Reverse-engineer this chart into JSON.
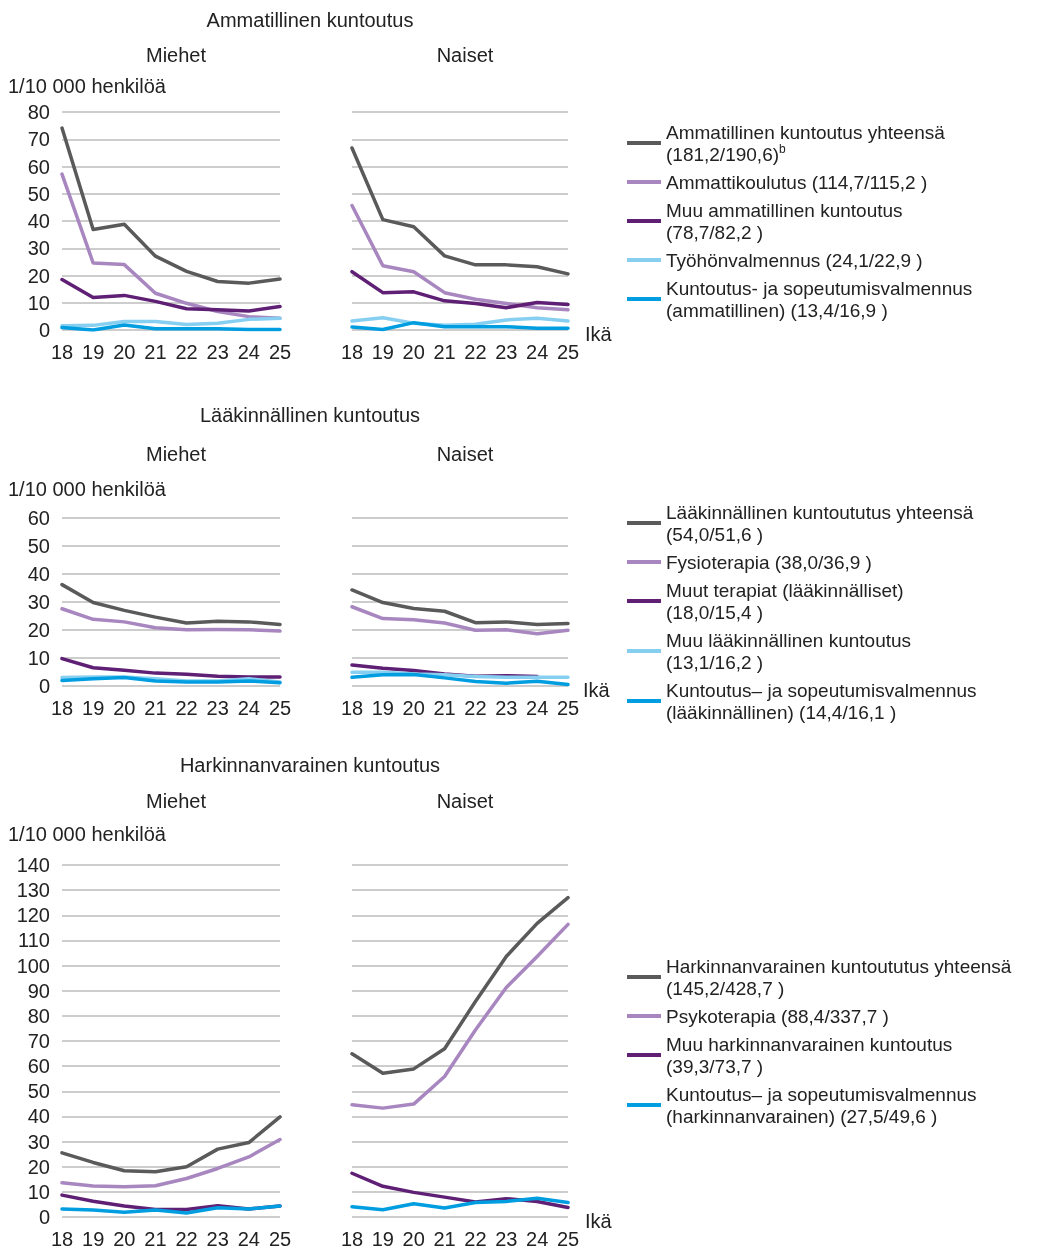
{
  "chart_data": [
    {
      "type": "line",
      "title": "Ammatillinen kuntoutus",
      "subtitle": "Miehet",
      "ylabel": "1/10 000 henkilöä",
      "categories": [
        "18",
        "19",
        "20",
        "21",
        "22",
        "23",
        "24",
        "25"
      ],
      "ylim": [
        0,
        80
      ],
      "yticks": [
        0,
        10,
        20,
        30,
        40,
        50,
        60,
        70,
        80
      ],
      "grid": "y",
      "series": [
        {
          "color": "#5a5a5a",
          "values": [
            74.1,
            36.9,
            38.8,
            27.1,
            21.5,
            17.8,
            17.2,
            18.7
          ]
        },
        {
          "color": "#a886bf",
          "values": [
            57.2,
            24.6,
            24.0,
            13.5,
            9.8,
            6.8,
            4.9,
            4.3
          ]
        },
        {
          "color": "#5e1f74",
          "values": [
            18.5,
            11.9,
            12.7,
            10.5,
            7.8,
            7.4,
            7.0,
            8.6
          ]
        },
        {
          "color": "#86cff0",
          "values": [
            1.6,
            1.7,
            3.1,
            3.1,
            2.0,
            2.5,
            3.9,
            4.3
          ]
        },
        {
          "color": "#009ee0",
          "values": [
            0.9,
            0.0,
            1.8,
            0.5,
            0.5,
            0.5,
            0.2,
            0.2
          ]
        }
      ]
    },
    {
      "type": "line",
      "subtitle": "Naiset",
      "xlabel": "Ikä",
      "categories": [
        "18",
        "19",
        "20",
        "21",
        "22",
        "23",
        "24",
        "25"
      ],
      "ylim": [
        0,
        80
      ],
      "yticks": [
        0,
        10,
        20,
        30,
        40,
        50,
        60,
        70,
        80
      ],
      "grid": "y",
      "tick_labels": "x",
      "legend": "right",
      "series": [
        {
          "name": "Ammatillinen kuntoutus yhteensä (181,2/190,6)$^{b}$",
          "color": "#5a5a5a",
          "values": [
            66.8,
            40.5,
            37.9,
            27.2,
            23.9,
            23.9,
            23.2,
            20.6
          ]
        },
        {
          "name": "Ammattikoulutus (114,7/115,2 )",
          "color": "#a886bf",
          "values": [
            45.7,
            23.6,
            21.4,
            13.7,
            11.3,
            9.7,
            8.2,
            7.4
          ]
        },
        {
          "name": "Muu ammatillinen kuntoutus (78,7/82,2 )",
          "color": "#5e1f74",
          "values": [
            21.4,
            13.7,
            14.0,
            10.7,
            9.7,
            8.2,
            10.1,
            9.4
          ]
        },
        {
          "name": "Työhönvalmennus (24,1/22,9 )",
          "color": "#86cff0",
          "values": [
            3.3,
            4.5,
            2.5,
            1.7,
            2.1,
            3.7,
            4.3,
            3.3
          ]
        },
        {
          "name": "Kuntoutus- ja sopeutumisvalmennus (ammatillinen) (13,4/16,9 )",
          "color": "#009ee0",
          "values": [
            1.1,
            0.2,
            2.7,
            1.2,
            1.2,
            1.2,
            0.6,
            0.6
          ]
        }
      ]
    },
    {
      "type": "line",
      "title": "Lääkinnällinen kuntoutus",
      "subtitle": "Miehet",
      "ylabel": "1/10 000 henkilöä",
      "categories": [
        "18",
        "19",
        "20",
        "21",
        "22",
        "23",
        "24",
        "25"
      ],
      "ylim": [
        0,
        60
      ],
      "yticks": [
        0,
        10,
        20,
        30,
        40,
        50,
        60
      ],
      "grid": "y",
      "series": [
        {
          "color": "#5a5a5a",
          "values": [
            36.2,
            29.8,
            27.0,
            24.6,
            22.5,
            23.1,
            22.9,
            22.0
          ]
        },
        {
          "color": "#a886bf",
          "values": [
            27.6,
            23.8,
            22.9,
            20.8,
            20.1,
            20.2,
            20.1,
            19.6
          ]
        },
        {
          "color": "#5e1f74",
          "values": [
            9.8,
            6.5,
            5.6,
            4.6,
            4.2,
            3.5,
            3.2,
            3.2
          ]
        },
        {
          "color": "#86cff0",
          "values": [
            3.0,
            3.2,
            3.2,
            2.6,
            1.8,
            1.8,
            2.6,
            1.4
          ]
        },
        {
          "color": "#009ee0",
          "values": [
            2.0,
            2.6,
            3.0,
            1.8,
            1.4,
            1.4,
            1.8,
            1.2
          ]
        }
      ]
    },
    {
      "type": "line",
      "subtitle": "Naiset",
      "xlabel": "Ikä",
      "categories": [
        "18",
        "19",
        "20",
        "21",
        "22",
        "23",
        "24",
        "25"
      ],
      "ylim": [
        0,
        60
      ],
      "yticks": [
        0,
        10,
        20,
        30,
        40,
        50,
        60
      ],
      "grid": "y",
      "tick_labels": "x",
      "legend": "right",
      "series": [
        {
          "name": "Lääkinnällinen kuntoututus yhteensä (54,0/51,6 )",
          "color": "#5a5a5a",
          "values": [
            34.3,
            29.8,
            27.7,
            26.7,
            22.6,
            22.9,
            22.0,
            22.3
          ]
        },
        {
          "name": "Fysioterapia (38,0/36,9 )",
          "color": "#a886bf",
          "values": [
            28.3,
            24.1,
            23.7,
            22.5,
            19.9,
            20.1,
            18.7,
            19.9
          ]
        },
        {
          "name": "Muut terapiat (lääkinnälliset) (18,0/15,4 )",
          "color": "#5e1f74",
          "values": [
            7.5,
            6.3,
            5.5,
            4.3,
            3.5,
            3.7,
            3.4,
            null
          ]
        },
        {
          "name": "Muu lääkinnällinen kuntoutus (13,1/16,2 )",
          "color": "#86cff0",
          "values": [
            4.9,
            4.9,
            4.3,
            4.0,
            3.4,
            3.1,
            3.1,
            3.1
          ]
        },
        {
          "name": "Kuntoutus– ja sopeutumisvalmennus (lääkinnällinen) (14,4/16,1 )",
          "color": "#009ee0",
          "values": [
            3.1,
            4.0,
            4.1,
            2.9,
            1.6,
            1.0,
            1.7,
            0.5
          ]
        }
      ]
    },
    {
      "type": "line",
      "title": "Harkinnanvarainen kuntoutus",
      "subtitle": "Miehet",
      "ylabel": "1/10 000 henkilöä",
      "categories": [
        "18",
        "19",
        "20",
        "21",
        "22",
        "23",
        "24",
        "25"
      ],
      "ylim": [
        0,
        140
      ],
      "yticks": [
        0,
        10,
        20,
        30,
        40,
        50,
        60,
        70,
        80,
        90,
        100,
        110,
        120,
        130,
        140
      ],
      "grid": "y",
      "series": [
        {
          "color": "#5a5a5a",
          "values": [
            25.5,
            21.7,
            18.4,
            18.0,
            20.0,
            27.0,
            29.6,
            39.8
          ]
        },
        {
          "color": "#a886bf",
          "values": [
            13.6,
            12.3,
            12.0,
            12.4,
            15.3,
            19.3,
            23.9,
            30.8
          ]
        },
        {
          "color": "#5e1f74",
          "values": [
            8.7,
            6.3,
            4.4,
            3.0,
            3.0,
            4.5,
            3.2,
            4.4
          ]
        },
        {
          "color": "#009ee0",
          "values": [
            3.2,
            2.8,
            1.9,
            2.8,
            1.6,
            3.7,
            3.2,
            4.4
          ]
        }
      ]
    },
    {
      "type": "line",
      "subtitle": "Naiset",
      "xlabel": "Ikä",
      "categories": [
        "18",
        "19",
        "20",
        "21",
        "22",
        "23",
        "24",
        "25"
      ],
      "ylim": [
        0,
        140
      ],
      "yticks": [
        0,
        10,
        20,
        30,
        40,
        50,
        60,
        70,
        80,
        90,
        100,
        110,
        120,
        130,
        140
      ],
      "grid": "y",
      "tick_labels": "x",
      "legend": "right",
      "series": [
        {
          "name": "Harkinnanvarainen kuntoututus yhteensä (145,2/428,7 )",
          "color": "#5a5a5a",
          "values": [
            64.9,
            57.2,
            58.9,
            66.9,
            85.7,
            103.6,
            116.8,
            127.0
          ]
        },
        {
          "name": "Psykoterapia (88,4/337,7 )",
          "color": "#a886bf",
          "values": [
            44.6,
            43.3,
            44.9,
            55.9,
            74.4,
            91.3,
            103.6,
            116.4
          ]
        },
        {
          "name": "Muu harkinnanvarainen kuntoutus (39,3/73,7 )",
          "color": "#5e1f74",
          "values": [
            17.4,
            12.2,
            9.8,
            7.9,
            6.0,
            7.3,
            6.2,
            3.8
          ]
        },
        {
          "name": "Kuntoutus– ja sopeutumisvalmennus (harkinnanvarainen) (27,5/49,6 )",
          "color": "#009ee0",
          "values": [
            4.1,
            2.9,
            5.3,
            3.6,
            5.8,
            6.2,
            7.5,
            5.8
          ]
        }
      ]
    }
  ]
}
